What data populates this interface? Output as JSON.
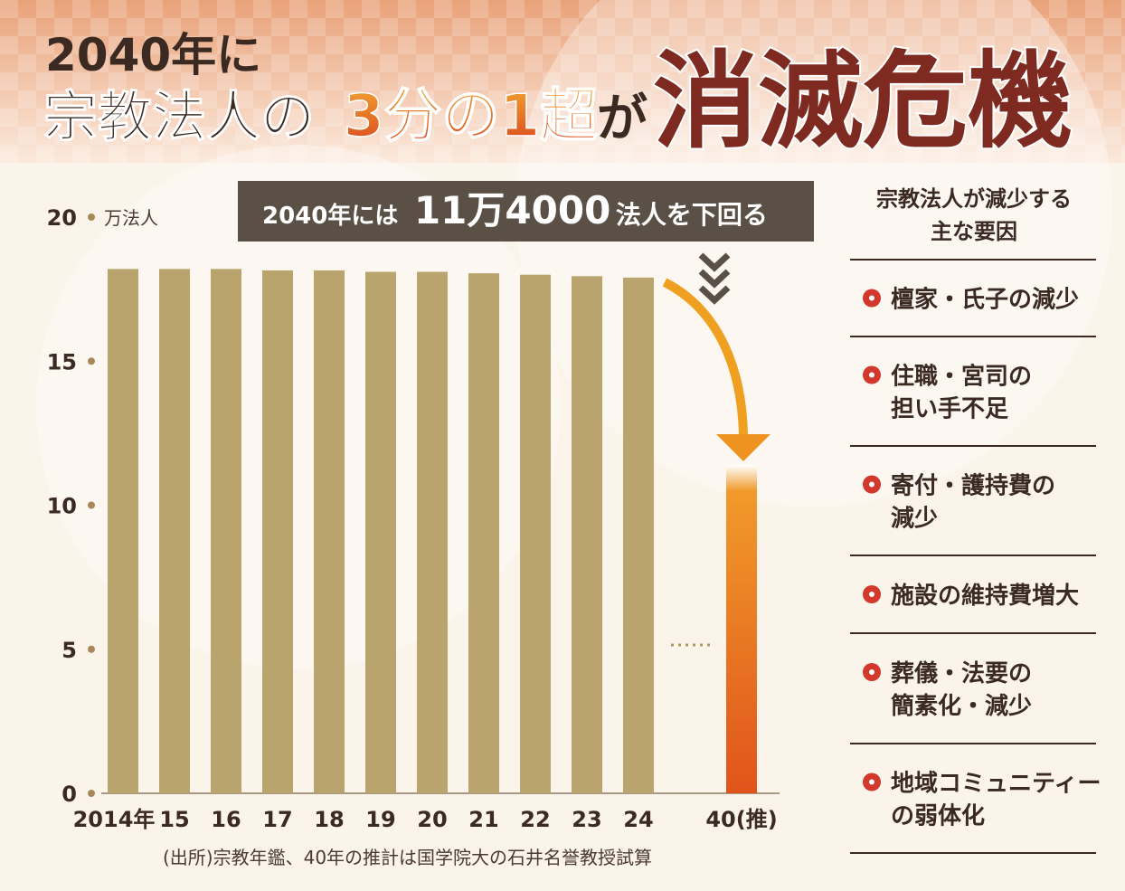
{
  "chart_data": {
    "type": "bar",
    "title": [
      "2040年に",
      "宗教法人の",
      "3分の1超",
      "が",
      "消滅危機"
    ],
    "banner": [
      "2040年には",
      "11万4000",
      "法人を下回る"
    ],
    "unit": "万法人",
    "categories": [
      "2014年",
      "15",
      "16",
      "17",
      "18",
      "19",
      "20",
      "21",
      "22",
      "23",
      "24",
      "40(推)"
    ],
    "values": [
      18.2,
      18.2,
      18.2,
      18.15,
      18.15,
      18.1,
      18.1,
      18.05,
      18.0,
      17.95,
      17.9,
      11.4
    ],
    "colors": [
      "#b9a46e",
      "#b9a46e",
      "#b9a46e",
      "#b9a46e",
      "#b9a46e",
      "#b9a46e",
      "#b9a46e",
      "#b9a46e",
      "#b9a46e",
      "#b9a46e",
      "#b9a46e",
      "#e8741f"
    ],
    "ylim": [
      0,
      20
    ],
    "yticks": [
      0,
      5,
      10,
      15,
      20
    ],
    "source": "(出所)宗教年鑑、40年の推計は国学院大の石井名誉教授試算",
    "factors_title": [
      "宗教法人が減少する",
      "主な要因"
    ],
    "factors": [
      [
        "檀家・氏子の減少"
      ],
      [
        "住職・宮司の",
        "担い手不足"
      ],
      [
        "寄付・護持費の",
        "減少"
      ],
      [
        "施設の維持費増大"
      ],
      [
        "葬儀・法要の",
        "簡素化・減少"
      ],
      [
        "地域コミュニティー",
        "の弱体化"
      ]
    ]
  }
}
